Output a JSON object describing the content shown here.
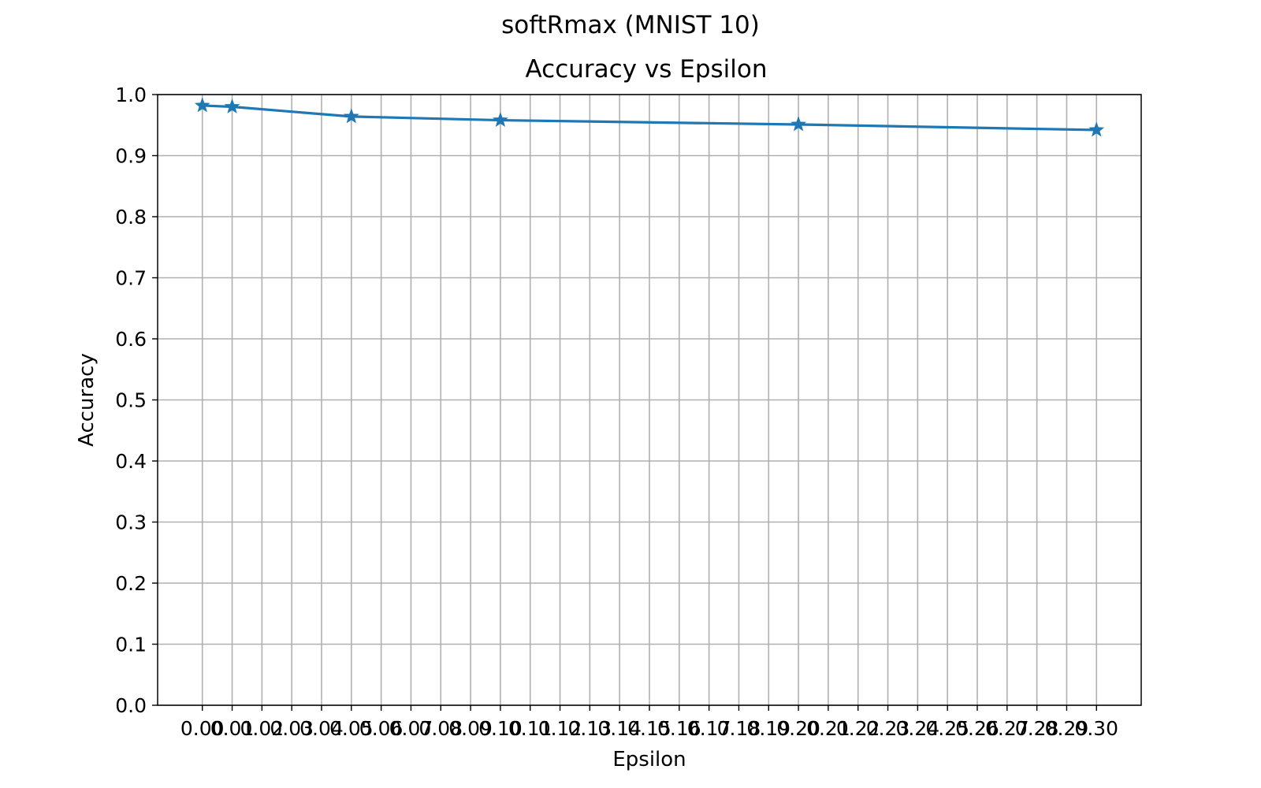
{
  "figure": {
    "suptitle": "softRmax (MNIST 10)"
  },
  "chart_data": {
    "type": "line",
    "title": "Accuracy vs Epsilon",
    "xlabel": "Epsilon",
    "ylabel": "Accuracy",
    "ylim": [
      0.0,
      1.0
    ],
    "xlim": [
      -0.015,
      0.315
    ],
    "grid": true,
    "x_ticks": [
      "0.00",
      "0.01",
      "0.02",
      "0.03",
      "0.04",
      "0.05",
      "0.06",
      "0.07",
      "0.08",
      "0.09",
      "0.10",
      "0.11",
      "0.12",
      "0.13",
      "0.14",
      "0.15",
      "0.16",
      "0.17",
      "0.18",
      "0.19",
      "0.20",
      "0.21",
      "0.22",
      "0.23",
      "0.24",
      "0.25",
      "0.26",
      "0.27",
      "0.28",
      "0.29",
      "0.30"
    ],
    "y_ticks": [
      "0.0",
      "0.1",
      "0.2",
      "0.3",
      "0.4",
      "0.5",
      "0.6",
      "0.7",
      "0.8",
      "0.9",
      "1.0"
    ],
    "series": [
      {
        "x": [
          0.0,
          0.01,
          0.05,
          0.1,
          0.2,
          0.3
        ],
        "y": [
          0.982,
          0.98,
          0.964,
          0.958,
          0.951,
          0.942
        ],
        "color": "#1f77b4",
        "marker": "star"
      }
    ]
  }
}
